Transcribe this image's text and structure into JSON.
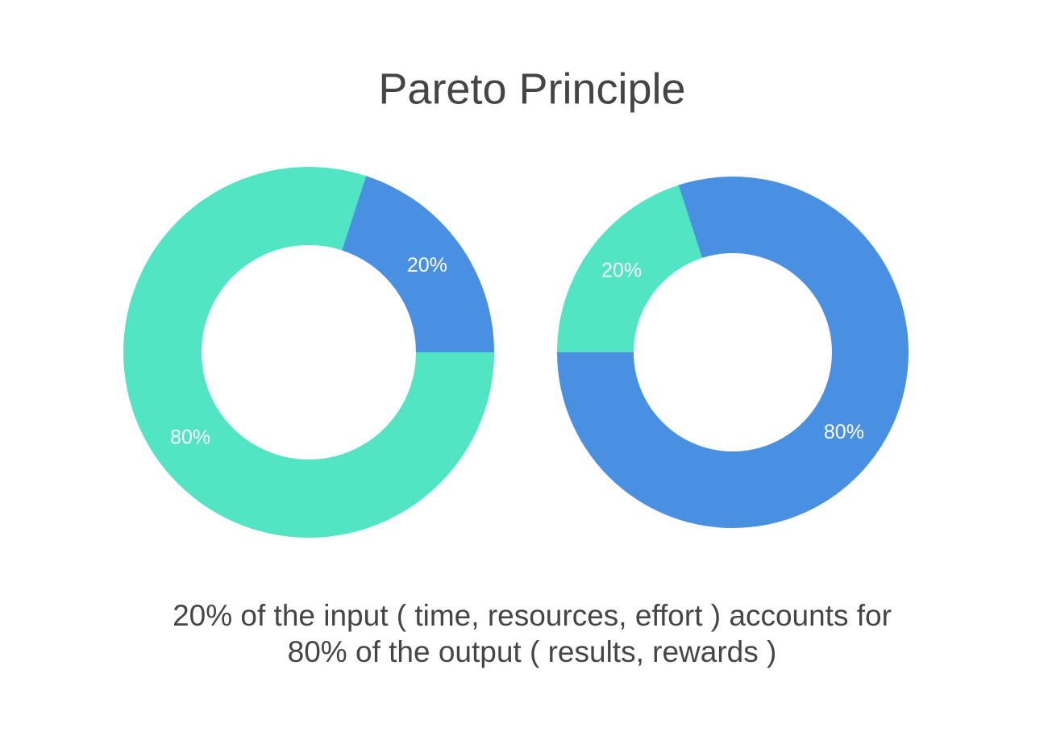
{
  "title": "Pareto Principle",
  "chart_data": [
    {
      "type": "donut",
      "values": [
        20,
        80
      ],
      "value_labels": [
        "20%",
        "80%"
      ],
      "colors": [
        "#4a90e2",
        "#52e5c3"
      ]
    },
    {
      "type": "donut",
      "values": [
        20,
        80
      ],
      "value_labels": [
        "20%",
        "80%"
      ],
      "colors": [
        "#52e5c3",
        "#4a90e2"
      ]
    }
  ],
  "caption": [
    "20% of the input ( time, resources, effort ) accounts for",
    "80% of the output ( results, rewards )"
  ]
}
